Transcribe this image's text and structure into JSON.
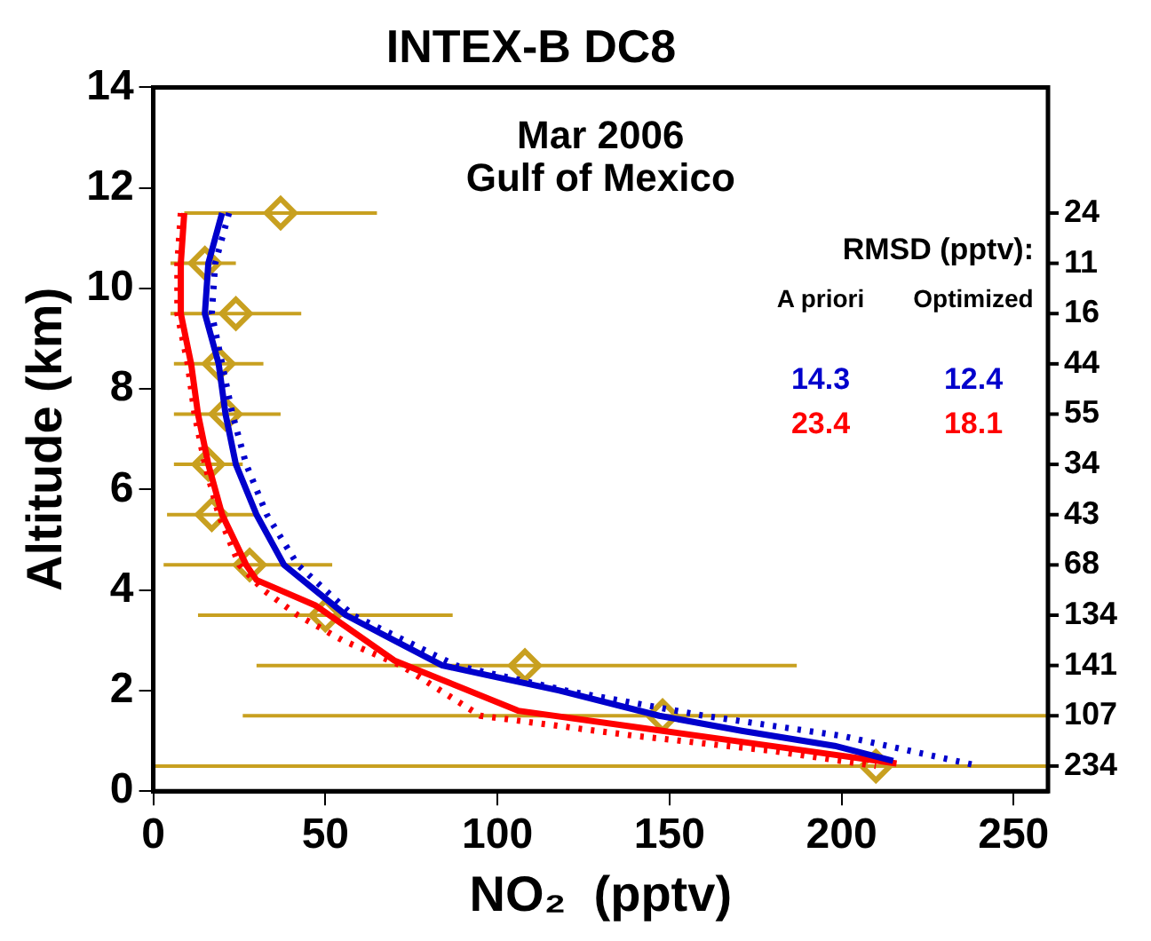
{
  "chart_data": {
    "type": "line",
    "title": "INTEX-B DC8",
    "xlabel": "NO₂  (pptv)",
    "ylabel": "Altitude (km)",
    "annotations": [
      "Mar 2006",
      "Gulf of Mexico",
      "RMSD (pptv):",
      "A priori",
      "Optimized",
      "14.3",
      "12.4",
      "23.4",
      "18.1",
      "24",
      "11",
      "16",
      "44",
      "55",
      "34",
      "43",
      "68",
      "134",
      "141",
      "107",
      "234"
    ],
    "xlim": [
      0,
      260
    ],
    "xticks": [
      0,
      50,
      100,
      150,
      200,
      250
    ],
    "ylim": [
      0,
      14
    ],
    "yticks": [
      0,
      2,
      4,
      6,
      8,
      10,
      12,
      14
    ],
    "grid": false,
    "legend": false,
    "series": [
      {
        "type": "line",
        "color": "#0000cc",
        "line_style": "solid",
        "marker": "none",
        "x": [
          20,
          16,
          15,
          19,
          21,
          24,
          30,
          38,
          47,
          56,
          70,
          84,
          118,
          147,
          171,
          198,
          215
        ],
        "values": [
          11.5,
          10.5,
          9.5,
          8.5,
          7.5,
          6.5,
          5.5,
          4.5,
          4.0,
          3.5,
          3.0,
          2.5,
          2.0,
          1.5,
          1.2,
          0.9,
          0.6
        ]
      },
      {
        "type": "line",
        "color": "#0000cc",
        "line_style": "dotted",
        "marker": "none",
        "x": [
          22,
          18,
          17,
          20,
          23,
          27,
          33,
          42,
          58,
          88,
          120,
          160,
          200,
          240
        ],
        "values": [
          11.5,
          10.5,
          9.5,
          8.5,
          7.5,
          6.5,
          5.5,
          4.5,
          3.5,
          2.5,
          2.0,
          1.5,
          1.1,
          0.5
        ]
      },
      {
        "type": "line",
        "color": "#ff0000",
        "line_style": "solid",
        "marker": "none",
        "x": [
          9,
          8,
          8,
          11,
          13,
          16,
          20,
          27,
          30,
          47,
          70,
          106,
          148,
          190,
          216
        ],
        "values": [
          11.5,
          10.5,
          9.5,
          8.5,
          7.5,
          6.5,
          5.5,
          4.5,
          4.2,
          3.7,
          2.6,
          1.6,
          1.2,
          0.8,
          0.55
        ]
      },
      {
        "type": "line",
        "color": "#ff0000",
        "line_style": "dotted",
        "marker": "none",
        "x": [
          8,
          7,
          7,
          10,
          12,
          15,
          19,
          25,
          32,
          42,
          55,
          72,
          95,
          140,
          180,
          210
        ],
        "values": [
          11.5,
          10.5,
          9.5,
          8.5,
          7.5,
          6.5,
          5.5,
          4.5,
          4.0,
          3.5,
          3.0,
          2.5,
          1.5,
          1.1,
          0.8,
          0.5
        ]
      },
      {
        "type": "scatter",
        "color": "#c8a020",
        "marker": "diamond",
        "x": [
          37,
          15,
          24,
          19,
          21,
          16,
          17,
          28,
          50,
          108,
          148,
          210
        ],
        "values": [
          11.5,
          10.5,
          9.5,
          8.5,
          7.5,
          6.5,
          5.5,
          4.5,
          3.5,
          2.5,
          1.5,
          0.5
        ],
        "xerrors": [
          [
            9,
            65
          ],
          [
            5,
            24
          ],
          [
            5,
            43
          ],
          [
            6,
            32
          ],
          [
            6,
            37
          ],
          [
            6,
            26
          ],
          [
            4,
            30
          ],
          [
            3,
            52
          ],
          [
            13,
            87
          ],
          [
            30,
            187
          ],
          [
            26,
            260
          ],
          [
            0,
            260
          ]
        ]
      }
    ]
  }
}
